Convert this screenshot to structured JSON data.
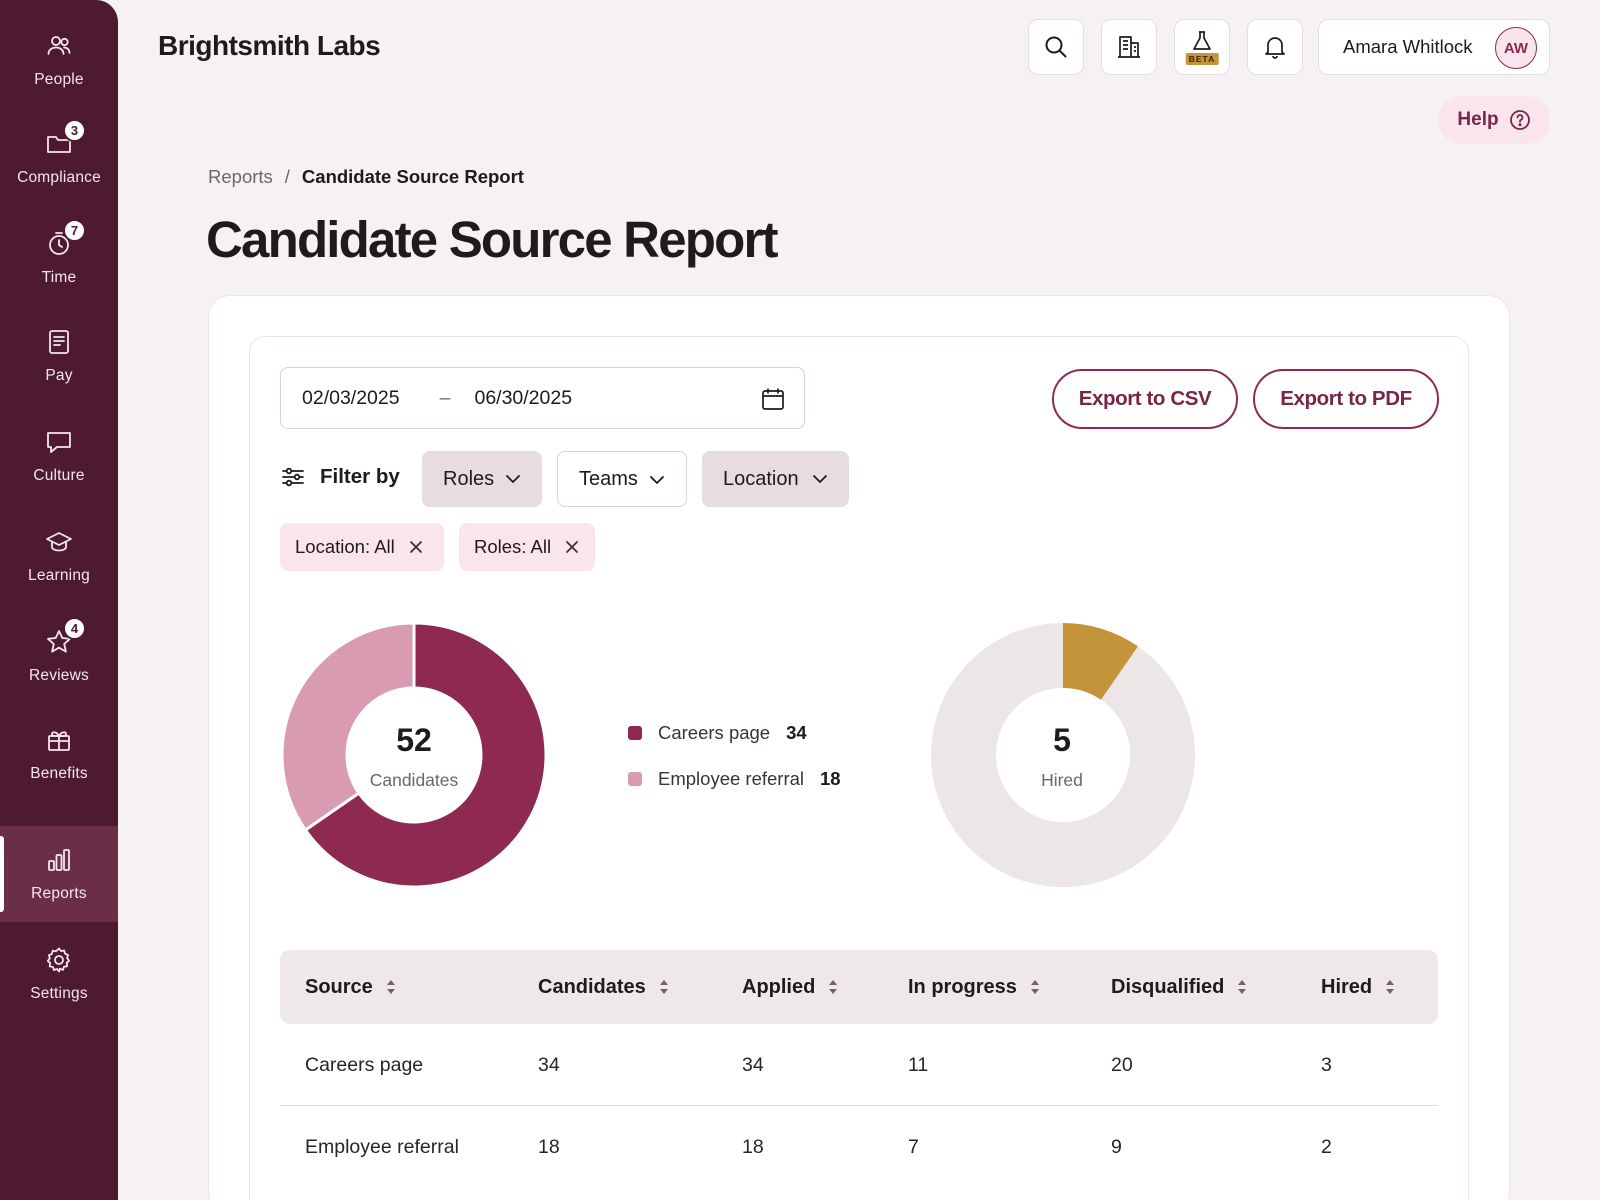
{
  "sidebar": {
    "items": [
      {
        "key": "people",
        "label": "People",
        "icon": "people-icon",
        "badge": ""
      },
      {
        "key": "compliance",
        "label": "Compliance",
        "icon": "folder-icon",
        "badge": "3"
      },
      {
        "key": "time",
        "label": "Time",
        "icon": "clock-icon",
        "badge": "7"
      },
      {
        "key": "pay",
        "label": "Pay",
        "icon": "document-icon",
        "badge": ""
      },
      {
        "key": "culture",
        "label": "Culture",
        "icon": "chat-icon",
        "badge": ""
      },
      {
        "key": "learning",
        "label": "Learning",
        "icon": "graduation-cap-icon",
        "badge": ""
      },
      {
        "key": "reviews",
        "label": "Reviews",
        "icon": "star-icon",
        "badge": "4"
      },
      {
        "key": "benefits",
        "label": "Benefits",
        "icon": "gift-icon",
        "badge": ""
      },
      {
        "key": "reports",
        "label": "Reports",
        "icon": "bar-chart-icon",
        "badge": "",
        "active": true
      },
      {
        "key": "settings",
        "label": "Settings",
        "icon": "gear-icon",
        "badge": ""
      }
    ]
  },
  "header": {
    "brand": "Brightsmith Labs",
    "beta_label": "BETA",
    "user_name": "Amara Whitlock",
    "user_initials": "AW",
    "help_label": "Help"
  },
  "breadcrumb": {
    "parent": "Reports",
    "separator": "/",
    "current": "Candidate Source Report"
  },
  "page_title": "Candidate Source Report",
  "date_range": {
    "start": "02/03/2025",
    "separator": "–",
    "end": "06/30/2025"
  },
  "actions": {
    "export_csv": "Export to CSV",
    "export_pdf": "Export to PDF"
  },
  "filters": {
    "label": "Filter by",
    "dropdowns": [
      "Roles",
      "Teams",
      "Location"
    ],
    "chips": [
      "Location: All",
      "Roles: All"
    ]
  },
  "colors": {
    "careers_page": "#8e2a52",
    "employee_referral": "#d99bb1",
    "hired": "#c4943a",
    "not_hired": "#ece6e7"
  },
  "candidates_chart": {
    "total": "52",
    "total_label": "Candidates",
    "legend": [
      {
        "name": "Careers page",
        "value": "34"
      },
      {
        "name": "Employee referral",
        "value": "18"
      }
    ]
  },
  "hired_chart": {
    "total": "5",
    "total_label": "Hired"
  },
  "chart_data": [
    {
      "type": "pie",
      "series": [
        {
          "categories": [
            "Careers page",
            "Employee referral"
          ],
          "values": [
            34,
            18
          ]
        }
      ]
    },
    {
      "type": "pie",
      "series": [
        {
          "values": [
            5,
            47
          ]
        }
      ]
    }
  ],
  "table": {
    "headers": [
      "Source",
      "Candidates",
      "Applied",
      "In progress",
      "Disqualified",
      "Hired"
    ],
    "rows": [
      [
        "Careers page",
        "34",
        "34",
        "11",
        "20",
        "3"
      ],
      [
        "Employee referral",
        "18",
        "18",
        "7",
        "9",
        "2"
      ]
    ]
  }
}
